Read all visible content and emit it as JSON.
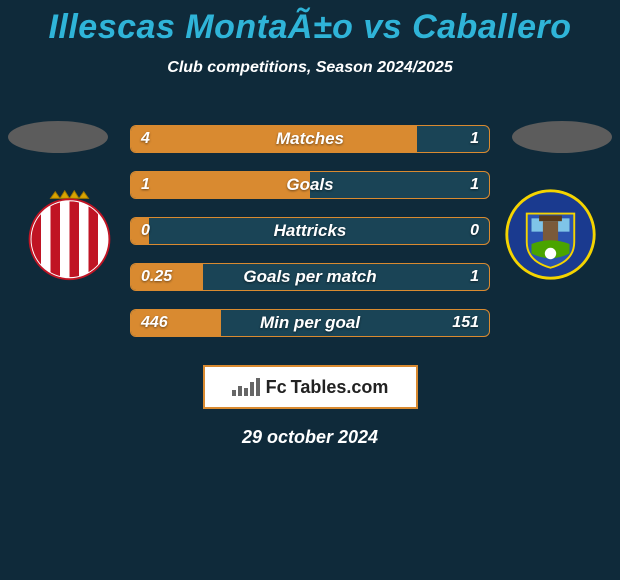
{
  "background_color": "#0f2a3a",
  "title": {
    "text": "Illescas MontaÃ±o vs Caballero",
    "color": "#2fb4d8",
    "fontsize": 34
  },
  "subtitle": {
    "text": "Club competitions, Season 2024/2025",
    "color": "#ffffff",
    "fontsize": 16
  },
  "ellipses": {
    "left_color": "#5c5c5c",
    "right_color": "#5c5c5c"
  },
  "crests": {
    "left": {
      "name": "algeciras-style-crest",
      "bg_color": "#ffffff",
      "stripe_colors": [
        "#c01424",
        "#ffffff"
      ],
      "crown_color": "#d8a400"
    },
    "right": {
      "name": "fuenlabrada-style-crest",
      "bg_color": "#1a3a8f",
      "accent_colors": [
        "#f5d400",
        "#4aa400",
        "#ffffff"
      ]
    }
  },
  "bars": {
    "bar_bg_color": "#1a4456",
    "bar_fill_color": "#d98a30",
    "border_color": "#d98a30",
    "text_color": "#ffffff",
    "rows": [
      {
        "label": "Matches",
        "left": "4",
        "right": "1",
        "fill_pct": 80
      },
      {
        "label": "Goals",
        "left": "1",
        "right": "1",
        "fill_pct": 50
      },
      {
        "label": "Hattricks",
        "left": "0",
        "right": "0",
        "fill_pct": 5
      },
      {
        "label": "Goals per match",
        "left": "0.25",
        "right": "1",
        "fill_pct": 20
      },
      {
        "label": "Min per goal",
        "left": "446",
        "right": "151",
        "fill_pct": 25
      }
    ]
  },
  "brand": {
    "text_prefix": "Fc",
    "text_suffix": "Tables.com",
    "border_color": "#d98a30",
    "bg_color": "#ffffff",
    "text_color": "#222222"
  },
  "date": {
    "text": "29 october 2024",
    "color": "#ffffff"
  }
}
